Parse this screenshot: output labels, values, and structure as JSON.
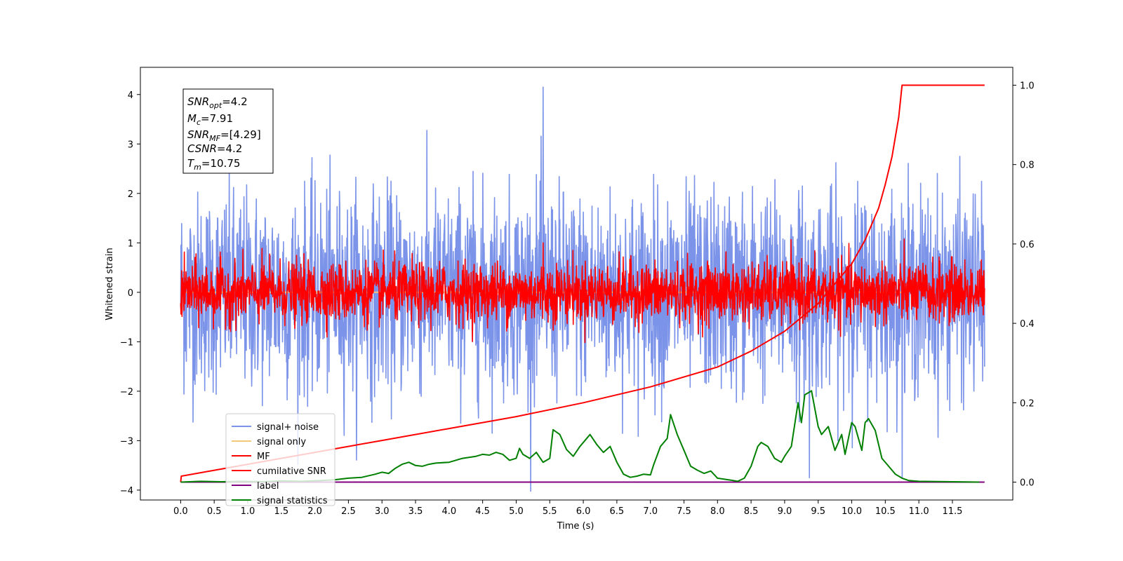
{
  "chart_data": {
    "type": "line",
    "title": "",
    "xlabel": "Time (s)",
    "ylabel": "Whitened strain",
    "xlim": [
      -0.6,
      12.4
    ],
    "ylim": [
      -4.2,
      4.55
    ],
    "ylim_right": [
      -0.045,
      1.045
    ],
    "x_ticks": [
      "0.0",
      "0.5",
      "1.0",
      "1.5",
      "2.0",
      "2.5",
      "3.0",
      "3.5",
      "4.0",
      "4.5",
      "5.0",
      "5.5",
      "6.0",
      "6.5",
      "7.0",
      "7.5",
      "8.0",
      "8.5",
      "9.0",
      "9.5",
      "10.0",
      "10.5",
      "11.0",
      "11.5"
    ],
    "y_ticks_left": [
      "4",
      "3",
      "2",
      "1",
      "0",
      "−1",
      "−2",
      "−3",
      "−4"
    ],
    "y_ticks_right": [
      "1.0",
      "0.8",
      "0.6",
      "0.4",
      "0.2",
      "0.0"
    ],
    "legend_position": "lower-left",
    "info_box": {
      "snr_opt": {
        "main": "SNR",
        "sub": "opt",
        "value": "=4.2"
      },
      "mc": {
        "main": "M",
        "sub": "c",
        "value": "=7.91"
      },
      "snr_mf": {
        "main": "SNR",
        "sub": "MF",
        "value": "=[4.29]"
      },
      "csnr": {
        "main": "CSNR",
        "value": "=4.2"
      },
      "tm": {
        "main": "T",
        "sub": "m",
        "value": "=10.75"
      }
    },
    "series": [
      {
        "name": "signal+ noise",
        "color": "#7b93e8",
        "axis": "left",
        "style": "noise",
        "x_range": [
          0,
          11.98
        ],
        "mean": 0.0,
        "spread": 1.0,
        "peaks": [
          4.15,
          -3.75
        ]
      },
      {
        "name": "signal only",
        "color": "#f5c77a",
        "axis": "left",
        "style": "flat",
        "x_range": [
          0,
          10.75
        ],
        "value": 0.0
      },
      {
        "name": "MF",
        "color": "#ff0000",
        "axis": "left",
        "style": "noise",
        "x_range": [
          0,
          11.98
        ],
        "mean": 0.0,
        "spread": 0.3,
        "peaks": [
          1.0,
          -0.4
        ]
      },
      {
        "name": "cumilative SNR",
        "color": "#ff0000",
        "axis": "right",
        "x": [
          0,
          0.01,
          1,
          2,
          3,
          4,
          5,
          6,
          7,
          8,
          8.5,
          9,
          9.5,
          10,
          10.2,
          10.4,
          10.5,
          10.6,
          10.7,
          10.75,
          11,
          11.5,
          11.98
        ],
        "values": [
          0.0,
          0.015,
          0.045,
          0.075,
          0.105,
          0.135,
          0.165,
          0.2,
          0.24,
          0.29,
          0.33,
          0.38,
          0.45,
          0.55,
          0.61,
          0.69,
          0.75,
          0.82,
          0.92,
          1.0,
          1.0,
          1.0,
          1.0
        ]
      },
      {
        "name": "label",
        "color": "#800080",
        "axis": "right",
        "x": [
          0,
          11.98
        ],
        "values": [
          0.0,
          0.0
        ]
      },
      {
        "name": "signal statistics",
        "color": "#008000",
        "axis": "right",
        "x": [
          0,
          0.3,
          0.6,
          0.9,
          1.2,
          1.5,
          1.8,
          2.1,
          2.3,
          2.5,
          2.7,
          2.9,
          3.0,
          3.1,
          3.2,
          3.3,
          3.4,
          3.5,
          3.6,
          3.7,
          3.8,
          4.0,
          4.2,
          4.4,
          4.5,
          4.6,
          4.7,
          4.8,
          4.9,
          5.0,
          5.05,
          5.1,
          5.2,
          5.3,
          5.4,
          5.5,
          5.55,
          5.65,
          5.75,
          5.85,
          5.95,
          6.05,
          6.1,
          6.2,
          6.3,
          6.4,
          6.5,
          6.6,
          6.7,
          6.8,
          6.9,
          7.0,
          7.05,
          7.15,
          7.25,
          7.3,
          7.4,
          7.5,
          7.6,
          7.7,
          7.8,
          7.9,
          8.0,
          8.2,
          8.3,
          8.4,
          8.5,
          8.6,
          8.65,
          8.75,
          8.85,
          8.95,
          9.0,
          9.1,
          9.2,
          9.25,
          9.3,
          9.35,
          9.4,
          9.5,
          9.55,
          9.6,
          9.65,
          9.75,
          9.85,
          9.9,
          10.0,
          10.05,
          10.1,
          10.15,
          10.2,
          10.25,
          10.35,
          10.45,
          10.55,
          10.65,
          10.75,
          10.85,
          11.0,
          11.5,
          11.9
        ],
        "values": [
          0.0,
          0.002,
          0.001,
          0.002,
          0.001,
          0.003,
          0.002,
          0.004,
          0.006,
          0.01,
          0.012,
          0.02,
          0.025,
          0.022,
          0.035,
          0.045,
          0.05,
          0.042,
          0.04,
          0.045,
          0.048,
          0.05,
          0.06,
          0.065,
          0.07,
          0.068,
          0.075,
          0.07,
          0.055,
          0.06,
          0.085,
          0.07,
          0.06,
          0.075,
          0.05,
          0.06,
          0.132,
          0.12,
          0.082,
          0.065,
          0.09,
          0.11,
          0.12,
          0.095,
          0.075,
          0.09,
          0.05,
          0.02,
          0.012,
          0.015,
          0.02,
          0.018,
          0.045,
          0.09,
          0.11,
          0.17,
          0.12,
          0.08,
          0.04,
          0.03,
          0.022,
          0.028,
          0.01,
          0.005,
          0.002,
          0.01,
          0.04,
          0.09,
          0.1,
          0.09,
          0.06,
          0.05,
          0.065,
          0.09,
          0.2,
          0.15,
          0.22,
          0.225,
          0.23,
          0.14,
          0.12,
          0.13,
          0.14,
          0.08,
          0.12,
          0.07,
          0.15,
          0.14,
          0.11,
          0.08,
          0.15,
          0.16,
          0.13,
          0.06,
          0.04,
          0.02,
          0.01,
          0.004,
          0.002,
          0.001,
          0.0
        ]
      }
    ]
  }
}
